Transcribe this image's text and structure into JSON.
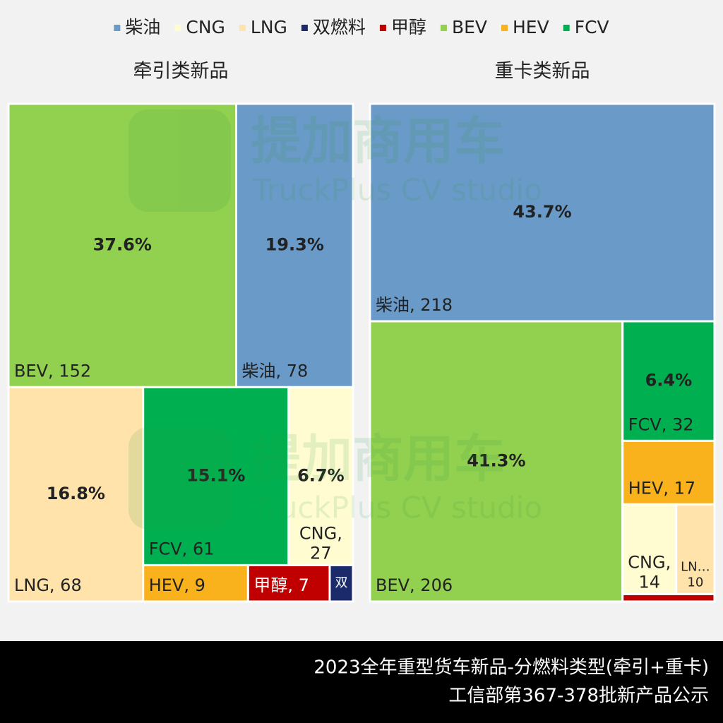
{
  "legend": [
    {
      "name": "柴油",
      "color": "#6a9ac8"
    },
    {
      "name": "CNG",
      "color": "#fffcd2"
    },
    {
      "name": "LNG",
      "color": "#ffe3ab"
    },
    {
      "name": "双燃料",
      "color": "#1b2a6b"
    },
    {
      "name": "甲醇",
      "color": "#c00000"
    },
    {
      "name": "BEV",
      "color": "#92d050"
    },
    {
      "name": "HEV",
      "color": "#f9b21b"
    },
    {
      "name": "FCV",
      "color": "#00b050"
    }
  ],
  "chart_data": [
    {
      "type": "treemap",
      "title": "牵引类新品",
      "categories": [
        "BEV",
        "柴油",
        "LNG",
        "FCV",
        "CNG",
        "HEV",
        "甲醇",
        "双燃料"
      ],
      "values": [
        152,
        78,
        68,
        61,
        27,
        9,
        7,
        2
      ],
      "value_labels": [
        "BEV, 152",
        "柴油, 78",
        "LNG, 68",
        "FCV, 61",
        "CNG, 27",
        "HEV, 9",
        "甲醇, 7",
        "双"
      ],
      "share_labels": [
        "37.6%",
        "19.3%",
        "16.8%",
        "15.1%",
        "6.7%",
        null,
        null,
        null
      ]
    },
    {
      "type": "treemap",
      "title": "重卡类新品",
      "categories": [
        "柴油",
        "BEV",
        "FCV",
        "HEV",
        "CNG",
        "LNG",
        "甲醇"
      ],
      "values": [
        218,
        206,
        32,
        17,
        14,
        10,
        2
      ],
      "value_labels": [
        "柴油, 218",
        "BEV, 206",
        "FCV, 32",
        "HEV, 17",
        "CNG, 14",
        "LN… 10",
        null
      ],
      "share_labels": [
        "43.7%",
        "41.3%",
        "6.4%",
        null,
        null,
        null,
        null
      ]
    }
  ],
  "watermark": {
    "name": "提加商用车",
    "sub": "TruckPlus CV studio"
  },
  "footer": {
    "line1": "2023全年重型货车新品-分燃料类型(牵引+重卡)",
    "line2": "工信部第367-378批新产品公示"
  }
}
